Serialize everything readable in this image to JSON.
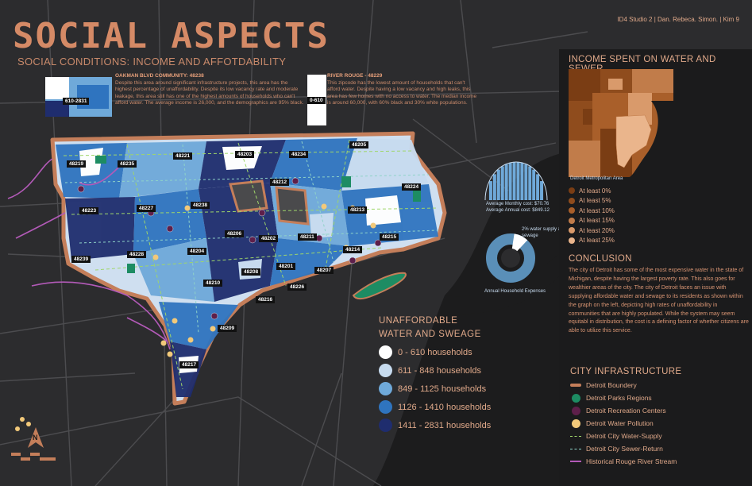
{
  "header": {
    "title": "SOCIAL ASPECTS",
    "subtitle": "SOCIAL CONDITIONS: INCOME AND AFFOTDABILITY",
    "credit": "ID4 Studio 2 | Dan. Rebeca. Simon. | Kim   9"
  },
  "callout_left": {
    "heading": "OAKMAN BLVD COMMUNITY: 48238",
    "body": "Despite this area around significant infrastructure projects, this area has the highest percentage of unaffordability. Despite its low vacancy rate and moderate leakage, this area still has one of the highest amounts of households who can't afford water. The average income is 26,000, and the demographics are  95% black.",
    "range_label": "610-2831"
  },
  "callout_right": {
    "heading": "RIVER ROUGE - 48229",
    "body": "This zipcode has the lowest amount of households that can't afford water. Despite having a low vacancy and high leaks, this area has few homes with no access to water. The median income is around 60,000, with 60% black and 30% white populations.",
    "range_label": "0-610"
  },
  "zip_labels": [
    "48219",
    "48235",
    "48221",
    "48203",
    "48234",
    "48205",
    "48212",
    "48224",
    "48223",
    "48227",
    "48238",
    "48213",
    "48206",
    "48202",
    "48211",
    "48215",
    "48239",
    "48228",
    "48204",
    "48214",
    "48208",
    "48201",
    "48207",
    "48210",
    "48226",
    "48216",
    "48209",
    "48217"
  ],
  "colors": {
    "accent": "#d58a66",
    "boundary": "#c47e5a",
    "parks": "#1d8c63",
    "recreation": "#5e1f4a",
    "pollution": "#f2c97a",
    "water_supply": "#9fd66a",
    "sewer_return": "#8fd3c8",
    "rouge_river": "#b35ab8",
    "hh": [
      "#ffffff",
      "#c7dbef",
      "#6fa9d9",
      "#2f74bf",
      "#1f2d6e"
    ]
  },
  "expense_arc": {
    "monthly": "Average Monthly cost: $70.76",
    "annual": "Average Annual cost: $849.12"
  },
  "donut": {
    "share_percent": 2,
    "share_label": "2% water supply & sewage",
    "caption": "Annual Household Expenses"
  },
  "income_map": {
    "title": "INCOME SPENT ON  WATER AND SEWER",
    "caption": "Detroit Metropolitan Area",
    "legend": [
      {
        "label": "At least 0%",
        "color": "#7a3d14"
      },
      {
        "label": "At least 5%",
        "color": "#8f4c1d"
      },
      {
        "label": "At least 10%",
        "color": "#a95f2a"
      },
      {
        "label": "At least 15%",
        "color": "#c17c4a"
      },
      {
        "label": "At least 20%",
        "color": "#d99a6b"
      },
      {
        "label": "At least 25%",
        "color": "#eab58c"
      }
    ]
  },
  "conclusion": {
    "title": "CONCLUSION",
    "body": "The city of Detroit has some of the most expensive water in the state of Michigan, despite having the largest poverty rate. This also goes for wealthier areas of the city. The city of Detroit faces an issue with supplying affordable water and sewage to its residents as shown within the graph on the left, depicting high rates of unaffordability in communities that are highly populated. While the system may seem equitabl in distribution, the cost is a defining factor of whether citizens are able to utilize this service."
  },
  "infrastructure": {
    "title": "CITY INFRASTRUCTURE",
    "items": [
      {
        "label": "Detroit Boundery",
        "symbol": "bar"
      },
      {
        "label": "Detroit Parks Regions",
        "symbol": "dot-parks"
      },
      {
        "label": "Detroit Recreation Centers",
        "symbol": "dot-rec"
      },
      {
        "label": "Detroit Water Pollution",
        "symbol": "dot-pol"
      },
      {
        "label": "Detroit City Water-Supply",
        "symbol": "dash-supply"
      },
      {
        "label": "Detroit City Sewer-Return",
        "symbol": "dash-sewer"
      },
      {
        "label": "Historical Rouge River Stream",
        "symbol": "line-river"
      }
    ]
  },
  "households": {
    "title_line1": "UNAFFORDABLE",
    "title_line2": "WATER AND SWEAGE",
    "items": [
      "0 - 610 households",
      "611 - 848 households",
      "849 - 1125 households",
      "1126 - 1410 households",
      "1411 - 2831 households"
    ]
  },
  "north_arrow": "N"
}
